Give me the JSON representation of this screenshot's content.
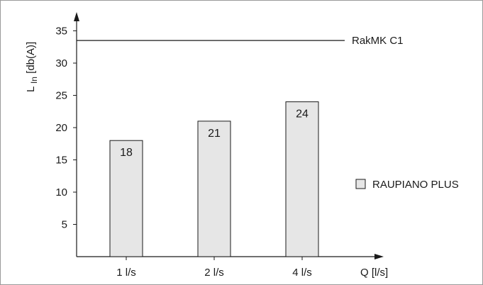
{
  "chart_data": {
    "type": "bar",
    "categories": [
      "1 l/s",
      "2 l/s",
      "4 l/s"
    ],
    "series": [
      {
        "name": "RAUPIANO PLUS",
        "values": [
          18,
          21,
          24
        ]
      }
    ],
    "data_labels": [
      "18",
      "21",
      "24"
    ],
    "xlabel": "Q [l/s]",
    "ylabel": {
      "main": "L",
      "subscript": "In",
      "unit": " [db(A)]"
    },
    "ylim": [
      0,
      37
    ],
    "yticks": [
      5,
      10,
      15,
      20,
      25,
      30,
      35
    ],
    "reference_line": {
      "label": "RakMK C1",
      "value": 33.5
    },
    "legend": {
      "label": "RAUPIANO PLUS",
      "placement": "right"
    },
    "grid": false,
    "colors": {
      "bar_fill": "#e6e6e6",
      "axis": "#1a1a1a",
      "frame": "#9a9a9a"
    }
  }
}
